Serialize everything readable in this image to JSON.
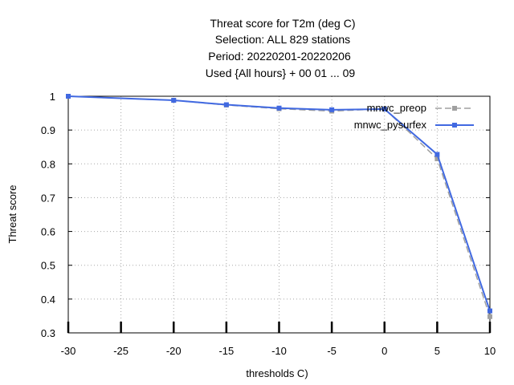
{
  "chart_data": {
    "type": "line",
    "title_lines": [
      "Threat score  for T2m (deg C)",
      "Selection: ALL    829 stations",
      "Period: 20220201-20220206",
      "Used {All hours} + 00 01 ... 09"
    ],
    "xlabel": "thresholds C)",
    "ylabel": "Threat score",
    "xlim": [
      -30,
      10
    ],
    "ylim": [
      0.3,
      1.0
    ],
    "xticks": [
      -30,
      -25,
      -20,
      -15,
      -10,
      -5,
      0,
      5,
      10
    ],
    "yticks": [
      0.3,
      0.4,
      0.5,
      0.6,
      0.7,
      0.8,
      0.9,
      1.0
    ],
    "x_tick_labels": [
      "-30",
      "-25",
      "-20",
      "-15",
      "-10",
      "-5",
      "0",
      "5",
      "10"
    ],
    "y_tick_labels": [
      "0.3",
      "0.4",
      "0.5",
      "0.6",
      "0.7",
      "0.8",
      "0.9",
      "1"
    ],
    "grid": true,
    "legend_position": "top-right",
    "x": [
      -30,
      -20,
      -15,
      -10,
      -5,
      0,
      5,
      10
    ],
    "series": [
      {
        "name": "mnwc_preop",
        "color": "#a0a0a0",
        "dashed": true,
        "values": [
          1.0,
          0.988,
          0.974,
          0.963,
          0.956,
          0.963,
          0.815,
          0.348
        ]
      },
      {
        "name": "mnwc_pysurfex",
        "color": "#4169e1",
        "dashed": false,
        "values": [
          1.0,
          0.988,
          0.975,
          0.965,
          0.96,
          0.962,
          0.828,
          0.365
        ]
      }
    ]
  }
}
